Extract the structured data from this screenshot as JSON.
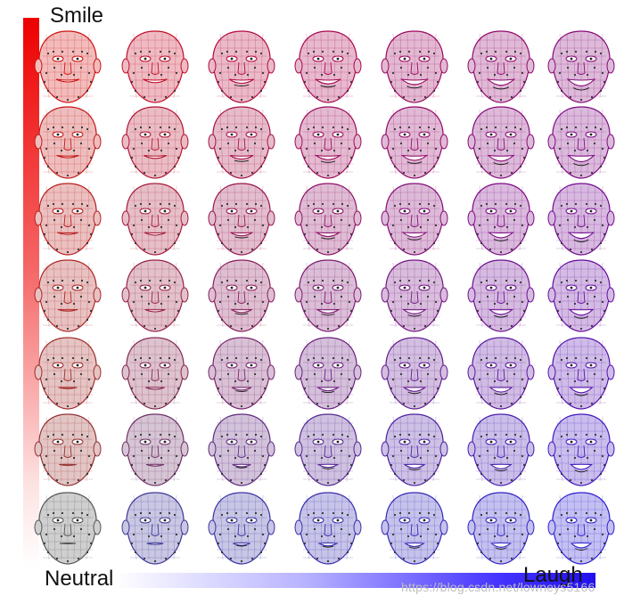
{
  "labels": {
    "top": "Smile",
    "bottom_left": "Neutral",
    "bottom_right": "Laugh"
  },
  "watermark": "https://blog.csdn.net/lowneys5166",
  "colors": {
    "smile_axis": "#ee0000",
    "laugh_axis": "#2010ee",
    "neutral": "#555555"
  },
  "grid": {
    "rows": 7,
    "columns": 7,
    "row_axis": "Smile",
    "column_axis": "Laugh"
  }
}
